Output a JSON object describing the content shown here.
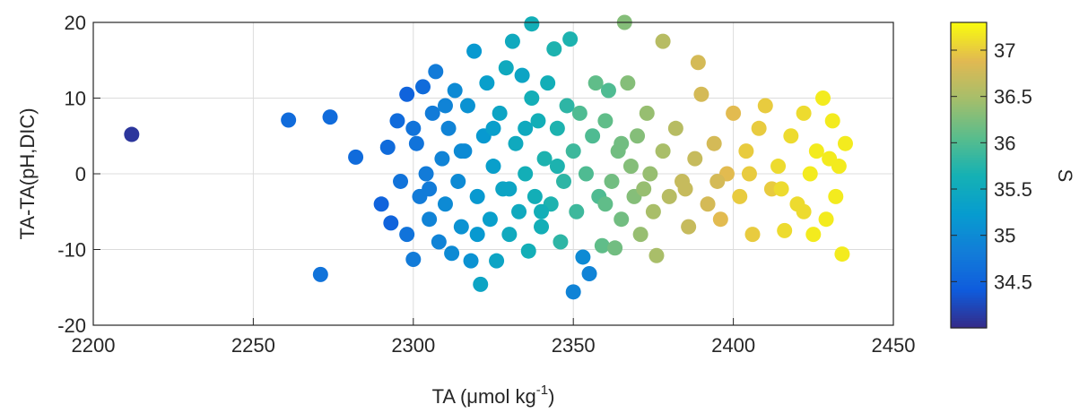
{
  "chart_data": {
    "type": "scatter",
    "xlabel": "TA (μmol kg",
    "xlabel_sup": "-1",
    "xlabel_end": ")",
    "ylabel": "TA-TA(pH,DIC)",
    "colorbar_label": "S",
    "xlim": [
      2200,
      2450
    ],
    "xticks": [
      2200,
      2250,
      2300,
      2350,
      2400,
      2450
    ],
    "ylim": [
      -20,
      20
    ],
    "yticks": [
      -20,
      -10,
      0,
      10,
      20
    ],
    "clim": [
      34.0,
      37.3
    ],
    "cticks": [
      34.5,
      35,
      35.5,
      36,
      36.5,
      37
    ],
    "colormap": [
      "#352a87",
      "#0f5cdd",
      "#127dd8",
      "#079ccf",
      "#15b1b4",
      "#59bd8c",
      "#a5be6b",
      "#e1b952",
      "#f9fb0e"
    ],
    "grid": true,
    "x": [
      2212,
      2261,
      2274,
      2271,
      2282,
      2290,
      2292,
      2293,
      2295,
      2296,
      2298,
      2298,
      2300,
      2301,
      2302,
      2303,
      2304,
      2305,
      2306,
      2307,
      2308,
      2309,
      2310,
      2311,
      2312,
      2313,
      2314,
      2315,
      2316,
      2317,
      2318,
      2319,
      2320,
      2321,
      2322,
      2323,
      2324,
      2325,
      2326,
      2327,
      2328,
      2329,
      2330,
      2331,
      2332,
      2333,
      2334,
      2335,
      2336,
      2337,
      2337,
      2338,
      2339,
      2340,
      2341,
      2342,
      2343,
      2344,
      2345,
      2346,
      2347,
      2348,
      2349,
      2350,
      2350,
      2351,
      2352,
      2353,
      2354,
      2355,
      2356,
      2357,
      2358,
      2359,
      2360,
      2361,
      2362,
      2363,
      2364,
      2365,
      2366,
      2367,
      2368,
      2369,
      2370,
      2371,
      2372,
      2373,
      2374,
      2375,
      2376,
      2378,
      2378,
      2380,
      2382,
      2384,
      2386,
      2388,
      2389,
      2390,
      2392,
      2394,
      2396,
      2398,
      2400,
      2402,
      2404,
      2406,
      2408,
      2410,
      2412,
      2414,
      2416,
      2418,
      2420,
      2422,
      2424,
      2425,
      2426,
      2428,
      2429,
      2430,
      2431,
      2432,
      2433,
      2434,
      2435,
      2300,
      2305,
      2310,
      2315,
      2320,
      2325,
      2330,
      2335,
      2340,
      2345,
      2360,
      2365,
      2385,
      2395,
      2405,
      2415,
      2422
    ],
    "values": [
      5.2,
      7.1,
      7.5,
      -13.3,
      2.2,
      -4,
      3.5,
      -6.5,
      7,
      -1,
      10.5,
      -8,
      -11.3,
      4,
      -3,
      11.5,
      0,
      -6,
      8,
      13.5,
      -9,
      2,
      -4,
      6,
      -10.5,
      11,
      -1,
      -7,
      3,
      9,
      -11.5,
      16.2,
      -3,
      -14.6,
      5,
      12,
      -6,
      1,
      -11.5,
      8,
      -2,
      14,
      -8,
      17.5,
      4,
      -5,
      13,
      0,
      -10.2,
      19.8,
      10,
      -3,
      7,
      -7,
      2,
      12,
      -4,
      16.5,
      6,
      -9,
      -1,
      9,
      17.8,
      -15.6,
      3,
      -5,
      8,
      -11,
      0,
      -13.2,
      5,
      12,
      -3,
      -9.5,
      7,
      11,
      -1,
      -9.8,
      3,
      -6,
      20,
      12,
      1,
      -3,
      5,
      -8,
      -2,
      8,
      0,
      -5,
      -10.8,
      17.5,
      3,
      -3,
      6,
      -1,
      -7,
      2,
      14.7,
      10.5,
      -4,
      4,
      -6,
      0,
      8,
      -3,
      3,
      -8,
      6,
      9,
      -2,
      1,
      -7.5,
      5,
      -4,
      8,
      0,
      -8,
      3,
      10,
      -6,
      2,
      7,
      -3,
      1,
      -10.6,
      4,
      6,
      -2,
      9,
      3,
      -8,
      6,
      -2,
      6,
      -5,
      1,
      -4,
      4,
      -2,
      -1,
      0,
      -2,
      -5
    ],
    "c": [
      34.1,
      34.6,
      34.6,
      34.7,
      34.6,
      34.5,
      34.6,
      34.5,
      34.6,
      34.7,
      34.5,
      34.7,
      34.8,
      34.7,
      34.8,
      34.6,
      34.8,
      34.9,
      34.8,
      34.8,
      34.9,
      34.9,
      35.0,
      34.9,
      35.0,
      35.0,
      35.0,
      35.1,
      35.0,
      35.1,
      35.1,
      35.2,
      35.2,
      35.4,
      35.2,
      35.3,
      35.3,
      35.3,
      35.4,
      35.4,
      35.4,
      35.5,
      35.5,
      35.5,
      35.5,
      35.5,
      35.4,
      35.6,
      35.6,
      35.6,
      35.6,
      35.6,
      35.6,
      35.6,
      35.7,
      35.6,
      35.7,
      35.7,
      35.7,
      35.8,
      35.8,
      35.8,
      35.7,
      34.9,
      35.9,
      35.9,
      36.0,
      35.0,
      36.0,
      34.9,
      36.0,
      36.1,
      36.0,
      36.1,
      36.1,
      36.0,
      36.2,
      36.2,
      36.2,
      36.2,
      36.3,
      36.3,
      36.3,
      36.3,
      36.3,
      36.4,
      36.4,
      36.4,
      36.4,
      36.5,
      36.5,
      36.6,
      36.5,
      36.6,
      36.6,
      36.7,
      36.7,
      36.7,
      36.8,
      36.8,
      36.8,
      36.8,
      36.9,
      36.9,
      36.9,
      37.0,
      37.0,
      37.0,
      37.0,
      37.0,
      37.0,
      37.1,
      37.1,
      37.1,
      37.1,
      37.1,
      37.2,
      37.2,
      37.2,
      37.2,
      37.2,
      37.2,
      37.2,
      37.2,
      37.2,
      37.2,
      37.2,
      34.7,
      34.8,
      34.9,
      35.0,
      35.2,
      35.3,
      35.4,
      35.5,
      35.6,
      35.7,
      36.1,
      36.2,
      36.7,
      36.8,
      37.0,
      37.1,
      37.1
    ]
  }
}
